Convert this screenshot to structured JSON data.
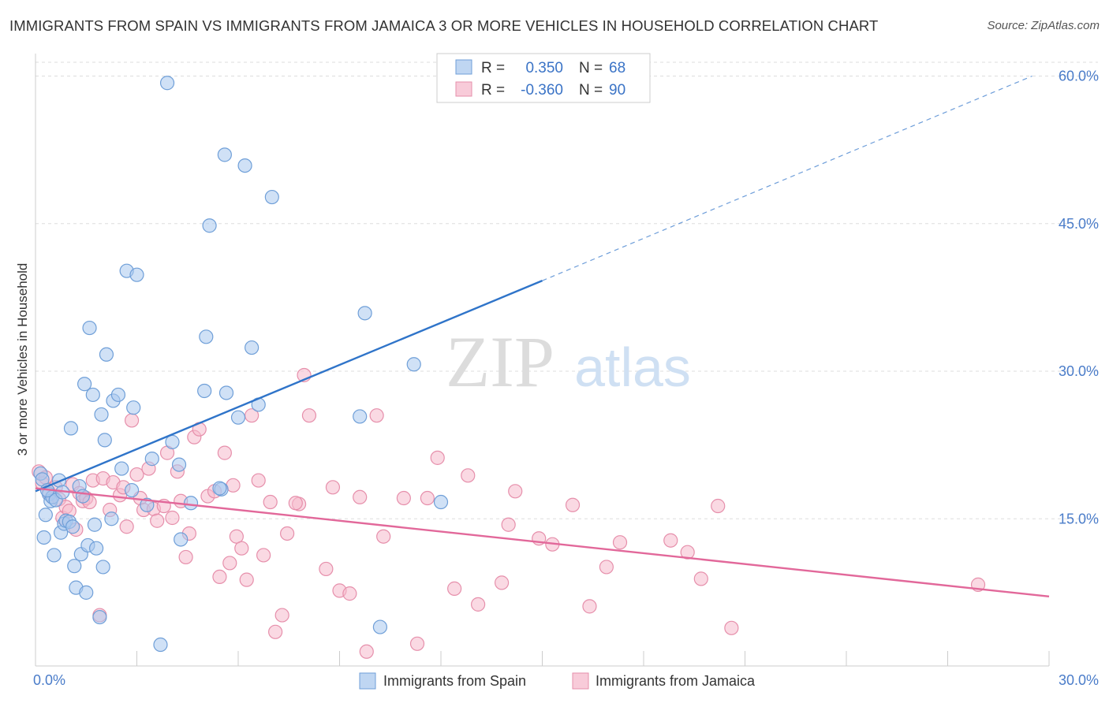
{
  "title": "IMMIGRANTS FROM SPAIN VS IMMIGRANTS FROM JAMAICA 3 OR MORE VEHICLES IN HOUSEHOLD CORRELATION CHART",
  "source": "Source: ZipAtlas.com",
  "watermark": {
    "zip": "ZIP",
    "atlas": "atlas"
  },
  "legend_box": {
    "rows": [
      {
        "r_label": "R =",
        "r_value": "0.350",
        "n_label": "N =",
        "n_value": "68"
      },
      {
        "r_label": "R =",
        "r_value": "-0.360",
        "n_label": "N =",
        "n_value": "90"
      }
    ]
  },
  "bottom_legend": [
    "Immigrants from Spain",
    "Immigrants from Jamaica"
  ],
  "colors": {
    "spain_fill": "#a9c8ee",
    "spain_stroke": "#6f9fd8",
    "spain_line": "#2f74c9",
    "jamaica_fill": "#f5b9cc",
    "jamaica_stroke": "#e68fab",
    "jamaica_line": "#e2689a",
    "tick_label": "#4a7cc9",
    "grid": "#dddddd"
  },
  "chart_data": {
    "type": "scatter",
    "title": "IMMIGRANTS FROM SPAIN VS IMMIGRANTS FROM JAMAICA 3 OR MORE VEHICLES IN HOUSEHOLD CORRELATION CHART",
    "xlabel": "",
    "ylabel": "3 or more Vehicles in Household",
    "xlim": [
      0,
      30
    ],
    "ylim": [
      0,
      60
    ],
    "x_ticks": [
      "0.0%",
      "30.0%"
    ],
    "y_ticks": [
      {
        "value": 15,
        "label": "15.0%"
      },
      {
        "value": 30,
        "label": "30.0%"
      },
      {
        "value": 45,
        "label": "45.0%"
      },
      {
        "value": 60,
        "label": "60.0%"
      }
    ],
    "grid": true,
    "legend_position": "bottom",
    "series": [
      {
        "name": "Immigrants from Spain",
        "R": 0.35,
        "N": 68,
        "trend": {
          "x0": 0,
          "y0": 17.8,
          "x1": 15.0,
          "y1": 39.2,
          "dash_x1": 29.5,
          "dash_y1": 60.0
        },
        "points": [
          [
            0.15,
            19.6
          ],
          [
            0.2,
            19.0
          ],
          [
            0.25,
            13.1
          ],
          [
            0.3,
            15.4
          ],
          [
            0.4,
            17.5
          ],
          [
            0.45,
            16.8
          ],
          [
            0.5,
            17.2
          ],
          [
            0.55,
            11.3
          ],
          [
            0.6,
            16.9
          ],
          [
            0.7,
            18.9
          ],
          [
            0.75,
            13.6
          ],
          [
            0.8,
            17.7
          ],
          [
            0.85,
            14.5
          ],
          [
            0.9,
            14.8
          ],
          [
            1.0,
            14.7
          ],
          [
            1.05,
            24.2
          ],
          [
            1.1,
            14.2
          ],
          [
            1.15,
            10.2
          ],
          [
            1.2,
            8.0
          ],
          [
            1.3,
            18.3
          ],
          [
            1.35,
            11.4
          ],
          [
            1.4,
            17.3
          ],
          [
            1.45,
            28.7
          ],
          [
            1.5,
            7.5
          ],
          [
            1.55,
            12.3
          ],
          [
            1.6,
            34.4
          ],
          [
            1.7,
            27.6
          ],
          [
            1.75,
            14.4
          ],
          [
            1.8,
            12.0
          ],
          [
            1.9,
            5.0
          ],
          [
            1.95,
            25.6
          ],
          [
            2.0,
            10.1
          ],
          [
            2.05,
            23.0
          ],
          [
            2.1,
            31.7
          ],
          [
            2.25,
            15.0
          ],
          [
            2.3,
            27.0
          ],
          [
            2.45,
            27.6
          ],
          [
            2.55,
            20.1
          ],
          [
            2.7,
            40.2
          ],
          [
            2.85,
            17.9
          ],
          [
            2.9,
            26.3
          ],
          [
            3.0,
            39.8
          ],
          [
            3.3,
            16.4
          ],
          [
            3.45,
            21.1
          ],
          [
            3.7,
            2.2
          ],
          [
            3.9,
            59.3
          ],
          [
            4.05,
            22.8
          ],
          [
            4.25,
            20.5
          ],
          [
            4.3,
            12.9
          ],
          [
            4.6,
            16.6
          ],
          [
            5.0,
            28.0
          ],
          [
            5.05,
            33.5
          ],
          [
            5.15,
            44.8
          ],
          [
            5.5,
            18.0
          ],
          [
            5.6,
            52.0
          ],
          [
            5.65,
            27.8
          ],
          [
            6.0,
            25.3
          ],
          [
            6.2,
            50.9
          ],
          [
            6.4,
            32.4
          ],
          [
            6.6,
            26.6
          ],
          [
            7.0,
            47.7
          ],
          [
            9.6,
            25.4
          ],
          [
            9.75,
            35.9
          ],
          [
            10.2,
            4.0
          ],
          [
            11.2,
            30.7
          ],
          [
            12.0,
            16.7
          ],
          [
            5.45,
            18.1
          ],
          [
            0.35,
            17.9
          ]
        ]
      },
      {
        "name": "Immigrants from Jamaica",
        "R": -0.36,
        "N": 90,
        "trend": {
          "x0": 0,
          "y0": 18.1,
          "x1": 30.0,
          "y1": 7.1
        },
        "points": [
          [
            0.1,
            19.8
          ],
          [
            0.2,
            18.6
          ],
          [
            0.3,
            19.2
          ],
          [
            0.4,
            17.7
          ],
          [
            0.5,
            17.2
          ],
          [
            0.6,
            18.2
          ],
          [
            0.7,
            17.0
          ],
          [
            0.8,
            15.1
          ],
          [
            0.9,
            16.2
          ],
          [
            1.0,
            15.8
          ],
          [
            1.1,
            18.5
          ],
          [
            1.2,
            13.9
          ],
          [
            1.3,
            17.6
          ],
          [
            1.4,
            16.8
          ],
          [
            1.5,
            17.1
          ],
          [
            1.6,
            16.7
          ],
          [
            1.7,
            18.9
          ],
          [
            1.9,
            5.2
          ],
          [
            2.0,
            19.1
          ],
          [
            2.2,
            15.9
          ],
          [
            2.3,
            18.7
          ],
          [
            2.5,
            17.4
          ],
          [
            2.6,
            18.2
          ],
          [
            2.7,
            14.2
          ],
          [
            2.85,
            25.0
          ],
          [
            3.0,
            19.5
          ],
          [
            3.1,
            17.1
          ],
          [
            3.2,
            15.9
          ],
          [
            3.35,
            20.1
          ],
          [
            3.5,
            16.0
          ],
          [
            3.6,
            14.8
          ],
          [
            3.8,
            16.3
          ],
          [
            3.9,
            21.7
          ],
          [
            4.05,
            15.1
          ],
          [
            4.2,
            19.8
          ],
          [
            4.3,
            16.8
          ],
          [
            4.45,
            11.1
          ],
          [
            4.55,
            13.5
          ],
          [
            4.7,
            23.3
          ],
          [
            4.85,
            24.1
          ],
          [
            5.1,
            17.3
          ],
          [
            5.3,
            17.8
          ],
          [
            5.45,
            9.1
          ],
          [
            5.6,
            21.7
          ],
          [
            5.75,
            10.5
          ],
          [
            5.85,
            18.4
          ],
          [
            5.95,
            13.2
          ],
          [
            6.1,
            12.0
          ],
          [
            6.25,
            8.8
          ],
          [
            6.4,
            25.5
          ],
          [
            6.6,
            18.9
          ],
          [
            6.75,
            11.3
          ],
          [
            6.95,
            16.7
          ],
          [
            7.1,
            3.5
          ],
          [
            7.3,
            5.2
          ],
          [
            7.45,
            13.5
          ],
          [
            7.8,
            16.5
          ],
          [
            7.95,
            29.6
          ],
          [
            8.1,
            25.5
          ],
          [
            8.6,
            9.9
          ],
          [
            8.8,
            18.2
          ],
          [
            9.0,
            7.7
          ],
          [
            9.3,
            7.4
          ],
          [
            9.6,
            17.2
          ],
          [
            9.8,
            1.5
          ],
          [
            10.1,
            25.5
          ],
          [
            10.3,
            13.2
          ],
          [
            10.9,
            17.1
          ],
          [
            11.3,
            2.3
          ],
          [
            11.6,
            17.1
          ],
          [
            11.9,
            21.2
          ],
          [
            12.4,
            7.9
          ],
          [
            12.8,
            19.4
          ],
          [
            13.1,
            6.3
          ],
          [
            13.8,
            8.5
          ],
          [
            14.0,
            14.4
          ],
          [
            14.2,
            17.8
          ],
          [
            14.9,
            13.0
          ],
          [
            15.3,
            12.4
          ],
          [
            15.9,
            16.4
          ],
          [
            16.4,
            6.1
          ],
          [
            16.9,
            10.1
          ],
          [
            17.3,
            12.6
          ],
          [
            18.8,
            12.8
          ],
          [
            19.3,
            11.6
          ],
          [
            19.7,
            8.9
          ],
          [
            20.2,
            16.3
          ],
          [
            20.6,
            3.9
          ],
          [
            27.9,
            8.3
          ],
          [
            7.7,
            16.6
          ]
        ]
      }
    ]
  }
}
